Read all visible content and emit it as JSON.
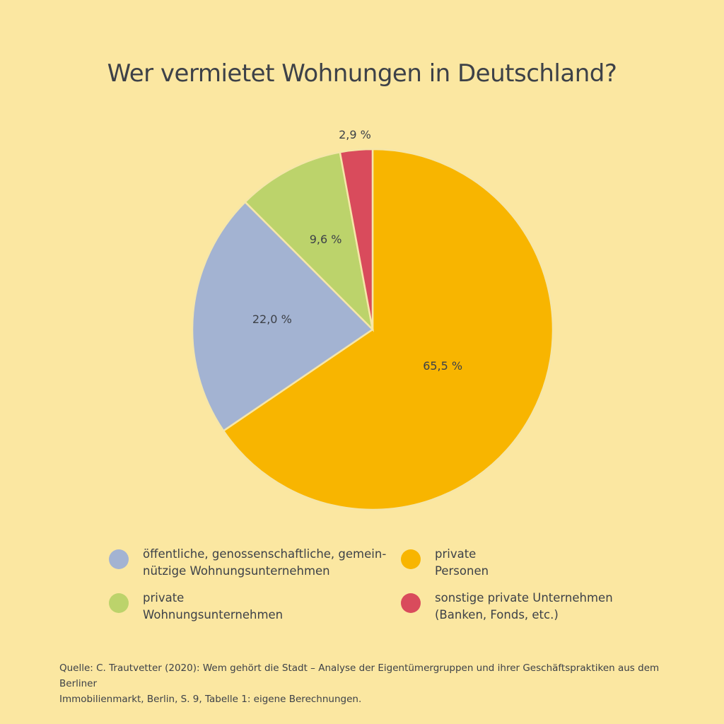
{
  "chart_data": {
    "type": "pie",
    "title": "Wer vermietet Wohnungen in Deutschland?",
    "categories": [
      "private\nPersonen",
      "öffentliche, genossenschaftliche, gemein-\nnützige Wohnungsunternehmen",
      "private\nWohnungsunternehmen",
      "sonstige private Unternehmen\n(Banken, Fonds, etc.)"
    ],
    "values": [
      65.5,
      22.0,
      9.6,
      2.9
    ],
    "value_labels": [
      "65,5 %",
      "22,0 %",
      "9,6 %",
      "2,9 %"
    ],
    "colors": [
      "#f8b500",
      "#a3b3d2",
      "#bcd36b",
      "#d94b5c"
    ],
    "source": "Quelle: C. Trautvetter (2020): Wem gehört die Stadt – Analyse der Eigentümergruppen und ihrer Geschäftspraktiken aus dem Berliner\nImmobilienmarkt, Berlin, S. 9, Tabelle 1: eigene Berechnungen."
  }
}
